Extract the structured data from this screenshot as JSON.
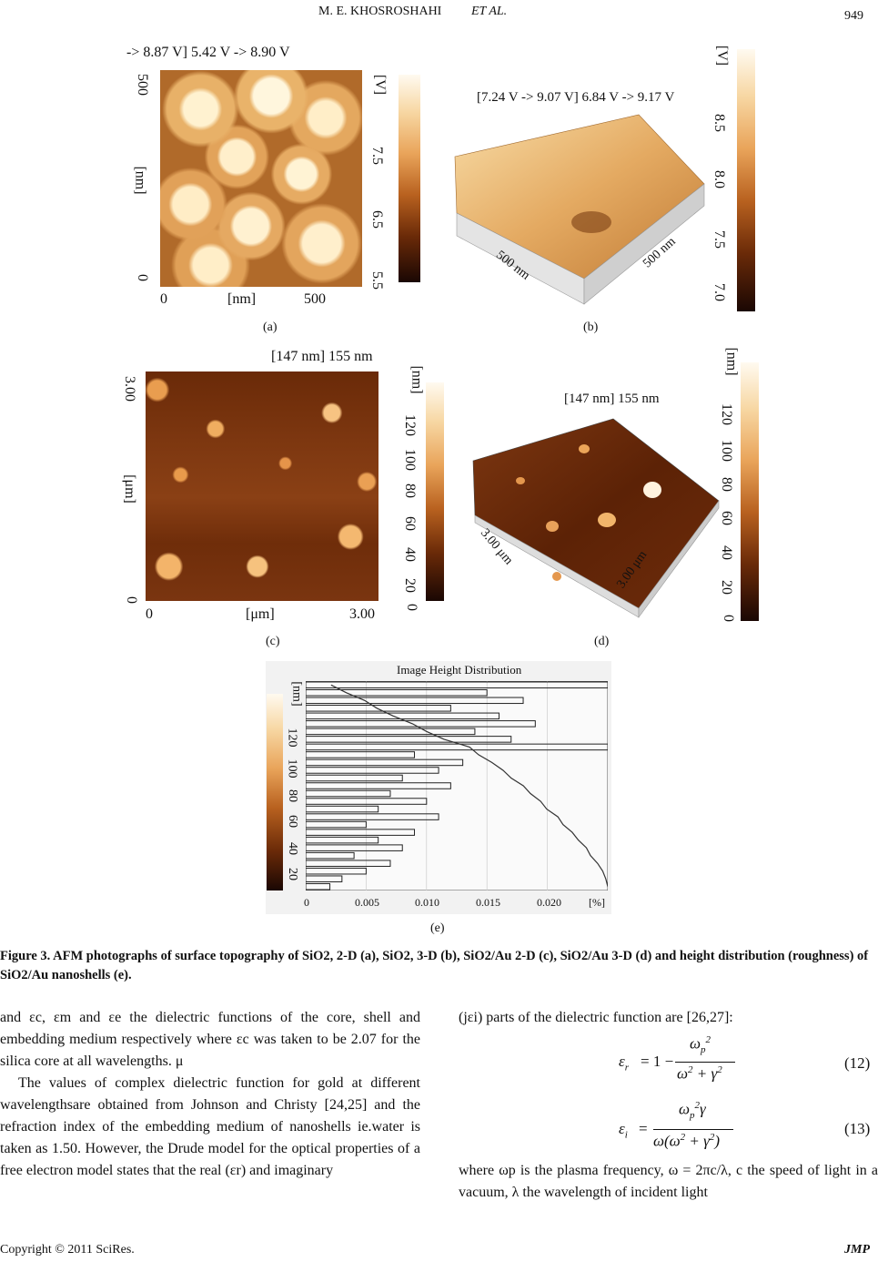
{
  "header": {
    "authors": "M. E. KHOSROSHAHI",
    "etal": "ET AL.",
    "page": "949"
  },
  "panel_a": {
    "title": "-> 8.87 V] 5.42 V   -> 8.90 V",
    "y_max": "500",
    "y_unit": "[nm]",
    "y_min": "0",
    "x_min": "0",
    "x_unit": "[nm]",
    "x_max": "500",
    "cbar_unit": "[V]",
    "cbar_ticks": [
      "7.5",
      "6.5",
      "5.5"
    ],
    "label": "(a)"
  },
  "panel_b": {
    "title": "[7.24 V -> 9.07 V] 6.84 V -> 9.17 V",
    "axis1": "500 nm",
    "axis2": "500 nm",
    "cbar_unit": "[V]",
    "cbar_ticks": [
      "8.5",
      "8.0",
      "7.5",
      "7.0"
    ],
    "label": "(b)"
  },
  "panel_c": {
    "title": "[147 nm] 155 nm",
    "y_max": "3.00",
    "y_unit": "[μm]",
    "y_min": "0",
    "x_min": "0",
    "x_unit": "[μm]",
    "x_max": "3.00",
    "cbar_unit": "[nm]",
    "cbar_ticks": [
      "120",
      "100",
      "80",
      "60",
      "40",
      "20",
      "0"
    ],
    "label": "(c)"
  },
  "panel_d": {
    "title": "[147 nm] 155 nm",
    "axis1": "3.00 μm",
    "axis2": "3.00 μm",
    "cbar_unit": "[nm]",
    "cbar_ticks": [
      "120",
      "100",
      "80",
      "60",
      "40",
      "20",
      "0"
    ],
    "label": "(d)"
  },
  "panel_e": {
    "title": "Image Height Distribution",
    "cbar_unit": "[nm]",
    "cbar_ticks": [
      "120",
      "100",
      "80",
      "60",
      "40",
      "20"
    ],
    "x_ticks": [
      "0",
      "0.005",
      "0.010",
      "0.015",
      "0.020",
      "[%]"
    ],
    "label": "(e)"
  },
  "chart_data": {
    "type": "bar",
    "title": "Image Height Distribution",
    "xlabel": "[%]",
    "ylabel": "[nm]",
    "xlim": [
      0,
      0.025
    ],
    "ylim": [
      10,
      150
    ],
    "orientation": "horizontal",
    "categories": [
      145,
      140,
      135,
      130,
      125,
      120,
      115,
      110,
      105,
      100,
      95,
      90,
      85,
      80,
      75,
      70,
      65,
      60,
      55,
      50,
      45,
      40,
      35,
      30,
      25,
      20,
      15
    ],
    "values": [
      0.025,
      0.015,
      0.018,
      0.012,
      0.016,
      0.019,
      0.014,
      0.017,
      0.025,
      0.009,
      0.013,
      0.011,
      0.008,
      0.012,
      0.007,
      0.01,
      0.006,
      0.011,
      0.005,
      0.009,
      0.006,
      0.008,
      0.004,
      0.007,
      0.005,
      0.003,
      0.002
    ]
  },
  "figure_caption": "Figure 3. AFM photographs of surface topography of SiO2, 2-D (a), SiO2, 3-D (b), SiO2/Au 2-D (c), SiO2/Au 3-D (d) and height distribution (roughness) of SiO2/Au nanoshells (e).",
  "col_left": {
    "p1": "and εc, εm and εe the dielectric functions of the core, shell and embedding medium respectively where εc was taken to be 2.07 for the silica core at all wavelengths. μ",
    "p2": "The values of complex dielectric function for gold at different wavelengthsare obtained from Johnson and Christy [24,25] and the refraction index of the embedding medium of nanoshells ie.water is taken as 1.50. However, the Drude model for the optical properties of a free electron model states that the real (εr) and imaginary"
  },
  "col_right": {
    "p1": "(jεi) parts of the dielectric function are [26,27]:",
    "eq12_num": "12",
    "eq13_num": "13",
    "p2": "where ωp is the plasma frequency, ω = 2πc/λ, c the speed of light in a vacuum, λ the wavelength of incident light"
  },
  "footer": {
    "copyright": "Copyright © 2011 SciRes.",
    "journal": "JMP"
  }
}
